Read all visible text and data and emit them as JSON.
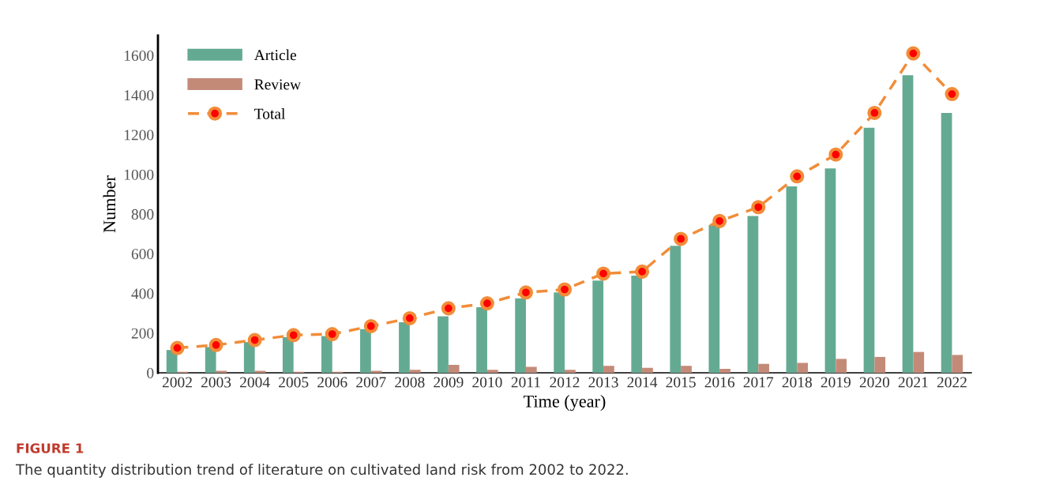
{
  "chart_data": {
    "type": "bar",
    "xlabel": "Time (year)",
    "ylabel": "Number",
    "categories": [
      "2002",
      "2003",
      "2004",
      "2005",
      "2006",
      "2007",
      "2008",
      "2009",
      "2010",
      "2011",
      "2012",
      "2013",
      "2014",
      "2015",
      "2016",
      "2017",
      "2018",
      "2019",
      "2020",
      "2021",
      "2022"
    ],
    "series": [
      {
        "name": "Article",
        "color": "#64aa93",
        "values": [
          115,
          130,
          155,
          180,
          185,
          220,
          255,
          285,
          330,
          375,
          405,
          465,
          490,
          640,
          745,
          790,
          940,
          1030,
          1235,
          1500,
          1310
        ]
      },
      {
        "name": "Review",
        "color": "#c48a78",
        "values": [
          5,
          10,
          10,
          5,
          5,
          10,
          15,
          40,
          15,
          30,
          15,
          35,
          25,
          35,
          20,
          45,
          50,
          70,
          80,
          105,
          90
        ]
      },
      {
        "name": "Total",
        "type": "line",
        "color": "#f28c38",
        "marker": "circle",
        "line_style": "dashed",
        "values": [
          125,
          140,
          165,
          190,
          195,
          235,
          275,
          325,
          350,
          405,
          420,
          500,
          510,
          675,
          765,
          835,
          990,
          1100,
          1310,
          1610,
          1405
        ]
      }
    ],
    "ylim": [
      0,
      1700
    ],
    "yticks": [
      0,
      200,
      400,
      600,
      800,
      1000,
      1200,
      1400,
      1600
    ],
    "grid": false,
    "legend": "top left",
    "annotations": [
      "FIGURE 1",
      "The quantity distribution trend of literature on cultivated land risk from 2002 to 2022."
    ]
  }
}
